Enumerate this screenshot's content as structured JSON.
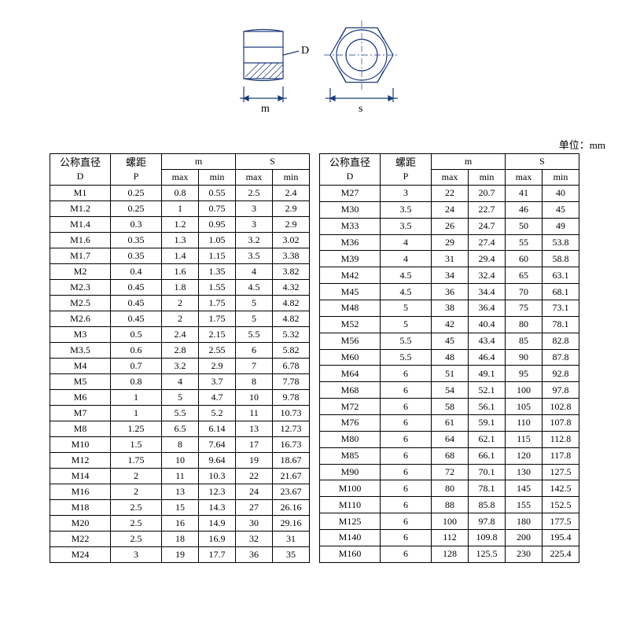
{
  "unit_label": "单位：mm",
  "diagram": {
    "label_D": "D",
    "label_m": "m",
    "label_s": "s",
    "line_color": "#1a3a7a",
    "hatch_color": "#1a3a7a"
  },
  "headers": {
    "d_top": "公称直径",
    "d_sub": "D",
    "p_top": "螺距",
    "p_sub": "P",
    "m_top": "m",
    "s_top": "S",
    "max": "max",
    "min": "min"
  },
  "table_left": {
    "rows": [
      [
        "M1",
        "0.25",
        "0.8",
        "0.55",
        "2.5",
        "2.4"
      ],
      [
        "M1.2",
        "0.25",
        "1",
        "0.75",
        "3",
        "2.9"
      ],
      [
        "M1.4",
        "0.3",
        "1.2",
        "0.95",
        "3",
        "2.9"
      ],
      [
        "M1.6",
        "0.35",
        "1.3",
        "1.05",
        "3.2",
        "3.02"
      ],
      [
        "M1.7",
        "0.35",
        "1.4",
        "1.15",
        "3.5",
        "3.38"
      ],
      [
        "M2",
        "0.4",
        "1.6",
        "1.35",
        "4",
        "3.82"
      ],
      [
        "M2.3",
        "0.45",
        "1.8",
        "1.55",
        "4.5",
        "4.32"
      ],
      [
        "M2.5",
        "0.45",
        "2",
        "1.75",
        "5",
        "4.82"
      ],
      [
        "M2.6",
        "0.45",
        "2",
        "1.75",
        "5",
        "4.82"
      ],
      [
        "M3",
        "0.5",
        "2.4",
        "2.15",
        "5.5",
        "5.32"
      ],
      [
        "M3.5",
        "0.6",
        "2.8",
        "2.55",
        "6",
        "5.82"
      ],
      [
        "M4",
        "0.7",
        "3.2",
        "2.9",
        "7",
        "6.78"
      ],
      [
        "M5",
        "0.8",
        "4",
        "3.7",
        "8",
        "7.78"
      ],
      [
        "M6",
        "1",
        "5",
        "4.7",
        "10",
        "9.78"
      ],
      [
        "M7",
        "1",
        "5.5",
        "5.2",
        "11",
        "10.73"
      ],
      [
        "M8",
        "1.25",
        "6.5",
        "6.14",
        "13",
        "12.73"
      ],
      [
        "M10",
        "1.5",
        "8",
        "7.64",
        "17",
        "16.73"
      ],
      [
        "M12",
        "1.75",
        "10",
        "9.64",
        "19",
        "18.67"
      ],
      [
        "M14",
        "2",
        "11",
        "10.3",
        "22",
        "21.67"
      ],
      [
        "M16",
        "2",
        "13",
        "12.3",
        "24",
        "23.67"
      ],
      [
        "M18",
        "2.5",
        "15",
        "14.3",
        "27",
        "26.16"
      ],
      [
        "M20",
        "2.5",
        "16",
        "14.9",
        "30",
        "29.16"
      ],
      [
        "M22",
        "2.5",
        "18",
        "16.9",
        "32",
        "31"
      ],
      [
        "M24",
        "3",
        "19",
        "17.7",
        "36",
        "35"
      ]
    ]
  },
  "table_right": {
    "rows": [
      [
        "M27",
        "3",
        "22",
        "20.7",
        "41",
        "40"
      ],
      [
        "M30",
        "3.5",
        "24",
        "22.7",
        "46",
        "45"
      ],
      [
        "M33",
        "3.5",
        "26",
        "24.7",
        "50",
        "49"
      ],
      [
        "M36",
        "4",
        "29",
        "27.4",
        "55",
        "53.8"
      ],
      [
        "M39",
        "4",
        "31",
        "29.4",
        "60",
        "58.8"
      ],
      [
        "M42",
        "4.5",
        "34",
        "32.4",
        "65",
        "63.1"
      ],
      [
        "M45",
        "4.5",
        "36",
        "34.4",
        "70",
        "68.1"
      ],
      [
        "M48",
        "5",
        "38",
        "36.4",
        "75",
        "73.1"
      ],
      [
        "M52",
        "5",
        "42",
        "40.4",
        "80",
        "78.1"
      ],
      [
        "M56",
        "5.5",
        "45",
        "43.4",
        "85",
        "82.8"
      ],
      [
        "M60",
        "5.5",
        "48",
        "46.4",
        "90",
        "87.8"
      ],
      [
        "M64",
        "6",
        "51",
        "49.1",
        "95",
        "92.8"
      ],
      [
        "M68",
        "6",
        "54",
        "52.1",
        "100",
        "97.8"
      ],
      [
        "M72",
        "6",
        "58",
        "56.1",
        "105",
        "102.8"
      ],
      [
        "M76",
        "6",
        "61",
        "59.1",
        "110",
        "107.8"
      ],
      [
        "M80",
        "6",
        "64",
        "62.1",
        "115",
        "112.8"
      ],
      [
        "M85",
        "6",
        "68",
        "66.1",
        "120",
        "117.8"
      ],
      [
        "M90",
        "6",
        "72",
        "70.1",
        "130",
        "127.5"
      ],
      [
        "M100",
        "6",
        "80",
        "78.1",
        "145",
        "142.5"
      ],
      [
        "M110",
        "6",
        "88",
        "85.8",
        "155",
        "152.5"
      ],
      [
        "M125",
        "6",
        "100",
        "97.8",
        "180",
        "177.5"
      ],
      [
        "M140",
        "6",
        "112",
        "109.8",
        "200",
        "195.4"
      ],
      [
        "M160",
        "6",
        "128",
        "125.5",
        "230",
        "225.4"
      ]
    ]
  }
}
